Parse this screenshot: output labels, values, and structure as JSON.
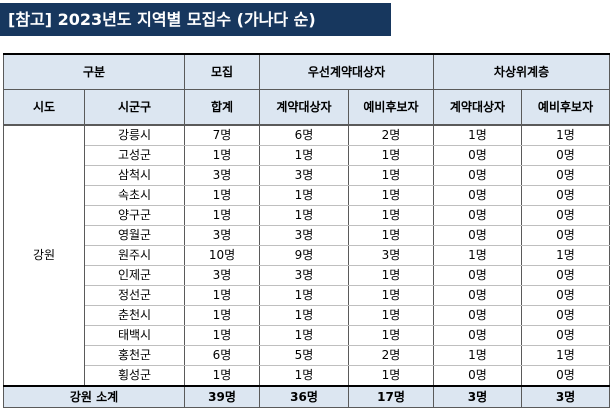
{
  "title": "[참고]  2023년도 지역별 모집수 (가나다 순)",
  "header": {
    "group": "구분",
    "recruit": "모집",
    "priority": "우선계약대상자",
    "next": "차상위계층",
    "province": "시도",
    "city": "시군구",
    "total": "합계",
    "p_contract": "계약대상자",
    "p_reserve": "예비후보자",
    "n_contract": "계약대상자",
    "n_reserve": "예비후보자"
  },
  "province": "강원",
  "rows": [
    {
      "city": "강릉시",
      "total": "7명",
      "pc": "6명",
      "pr": "2명",
      "nc": "1명",
      "nr": "1명"
    },
    {
      "city": "고성군",
      "total": "1명",
      "pc": "1명",
      "pr": "1명",
      "nc": "0명",
      "nr": "0명"
    },
    {
      "city": "삼척시",
      "total": "3명",
      "pc": "3명",
      "pr": "1명",
      "nc": "0명",
      "nr": "0명"
    },
    {
      "city": "속초시",
      "total": "1명",
      "pc": "1명",
      "pr": "1명",
      "nc": "0명",
      "nr": "0명"
    },
    {
      "city": "양구군",
      "total": "1명",
      "pc": "1명",
      "pr": "1명",
      "nc": "0명",
      "nr": "0명"
    },
    {
      "city": "영월군",
      "total": "3명",
      "pc": "3명",
      "pr": "1명",
      "nc": "0명",
      "nr": "0명"
    },
    {
      "city": "원주시",
      "total": "10명",
      "pc": "9명",
      "pr": "3명",
      "nc": "1명",
      "nr": "1명"
    },
    {
      "city": "인제군",
      "total": "3명",
      "pc": "3명",
      "pr": "1명",
      "nc": "0명",
      "nr": "0명"
    },
    {
      "city": "정선군",
      "total": "1명",
      "pc": "1명",
      "pr": "1명",
      "nc": "0명",
      "nr": "0명"
    },
    {
      "city": "춘천시",
      "total": "1명",
      "pc": "1명",
      "pr": "1명",
      "nc": "0명",
      "nr": "0명"
    },
    {
      "city": "태백시",
      "total": "1명",
      "pc": "1명",
      "pr": "1명",
      "nc": "0명",
      "nr": "0명"
    },
    {
      "city": "홍천군",
      "total": "6명",
      "pc": "5명",
      "pr": "2명",
      "nc": "1명",
      "nr": "1명"
    },
    {
      "city": "횡성군",
      "total": "1명",
      "pc": "1명",
      "pr": "1명",
      "nc": "0명",
      "nr": "0명"
    }
  ],
  "subtotal": {
    "label": "강원 소계",
    "total": "39명",
    "pc": "36명",
    "pr": "17명",
    "nc": "3명",
    "nr": "3명"
  }
}
